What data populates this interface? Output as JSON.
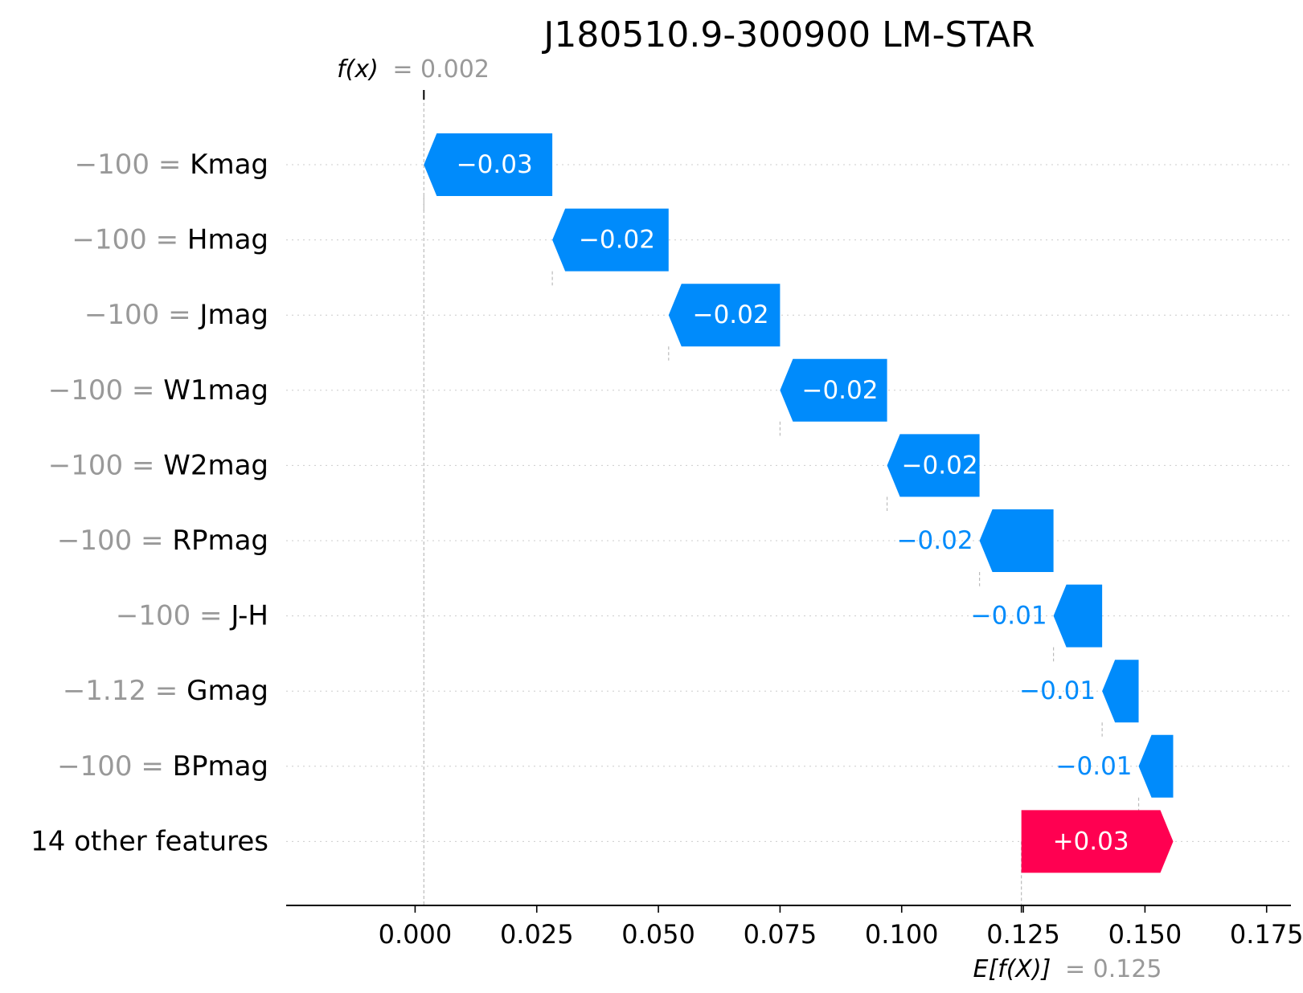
{
  "chart_data": {
    "type": "waterfall",
    "title": "J180510.9-300900 LM-STAR",
    "fx_label": "f(x)",
    "fx_value": "= 0.002",
    "fx": 0.0018,
    "ex_label": "E[f(X)]",
    "ex_value": "= 0.125",
    "base_value": 0.1246,
    "xlim": [
      -0.0265,
      0.18
    ],
    "xticks": [
      0.0,
      0.025,
      0.05,
      0.075,
      0.1,
      0.125,
      0.15,
      0.175
    ],
    "xtick_labels": [
      "0.000",
      "0.025",
      "0.050",
      "0.075",
      "0.100",
      "0.125",
      "0.150",
      "0.175"
    ],
    "grid": "dotted horizontal lines per feature",
    "colors": {
      "positive": "#ff0051",
      "negative": "#008bfb",
      "text_grey": "#999999"
    },
    "features": [
      {
        "value": "−100",
        "name": "Kmag",
        "start": 0.0282,
        "end": 0.0018,
        "label": "−0.03"
      },
      {
        "value": "−100",
        "name": "Hmag",
        "start": 0.0521,
        "end": 0.0282,
        "label": "−0.02"
      },
      {
        "value": "−100",
        "name": "Jmag",
        "start": 0.075,
        "end": 0.0521,
        "label": "−0.02"
      },
      {
        "value": "−100",
        "name": "W1mag",
        "start": 0.097,
        "end": 0.075,
        "label": "−0.02"
      },
      {
        "value": "−100",
        "name": "W2mag",
        "start": 0.116,
        "end": 0.097,
        "label": "−0.02"
      },
      {
        "value": "−100",
        "name": "RPmag",
        "start": 0.1312,
        "end": 0.116,
        "label": "−0.02"
      },
      {
        "value": "−100",
        "name": "J-H",
        "start": 0.1412,
        "end": 0.1312,
        "label": "−0.01"
      },
      {
        "value": "−1.12",
        "name": "Gmag",
        "start": 0.1487,
        "end": 0.1412,
        "label": "−0.01"
      },
      {
        "value": "−100",
        "name": "BPmag",
        "start": 0.1558,
        "end": 0.1487,
        "label": "−0.01"
      },
      {
        "value": "",
        "name": "14 other features",
        "start": 0.1246,
        "end": 0.1558,
        "label": "+0.03"
      }
    ]
  }
}
